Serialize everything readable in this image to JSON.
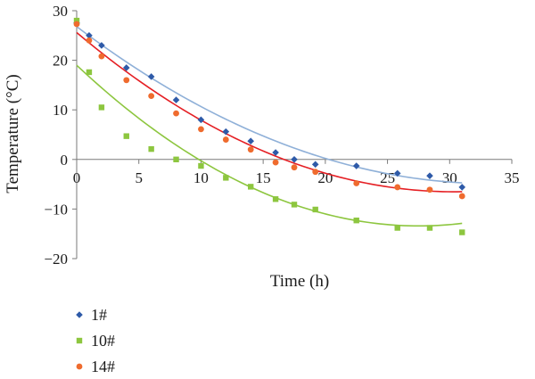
{
  "chart_data": {
    "type": "scatter",
    "xlabel": "Time (h)",
    "ylabel": "Temperature (°C)",
    "xlim": [
      0,
      35
    ],
    "ylim": [
      -20,
      30
    ],
    "x_ticks": [
      "0",
      "5",
      "10",
      "15",
      "20",
      "25",
      "30",
      "35"
    ],
    "y_ticks": [
      "30",
      "20",
      "10",
      "0",
      "−10",
      "−20"
    ],
    "y_tick_values": [
      30,
      20,
      10,
      0,
      -10,
      -20
    ],
    "x_tick_values": [
      0,
      5,
      10,
      15,
      20,
      25,
      30,
      35
    ],
    "grid": false,
    "legend_position": "bottom-left",
    "trendline": "polynomial (order 2)",
    "series": [
      {
        "name": "1#",
        "marker": "diamond",
        "color": "#2e5aa8",
        "trend_color": "#8fb0d8",
        "x": [
          0,
          1,
          2,
          4,
          6,
          8,
          10,
          12,
          14,
          16,
          17.5,
          19.2,
          22.5,
          25.8,
          28.4,
          31
        ],
        "y": [
          27.5,
          25,
          23,
          18.5,
          16.7,
          12,
          8,
          5.6,
          3.7,
          1.4,
          0,
          -1,
          -1.3,
          -2.8,
          -3.3,
          -5.6
        ],
        "trend_points": [
          [
            0,
            26.8
          ],
          [
            14,
            5.8
          ],
          [
            28.5,
            -4.2
          ],
          [
            31,
            -3.4
          ]
        ]
      },
      {
        "name": "10#",
        "marker": "square",
        "color": "#8dc63f",
        "trend_color": "#8dc63f",
        "x": [
          0,
          1,
          2,
          4,
          6,
          8,
          10,
          12,
          14,
          16,
          17.5,
          19.2,
          22.5,
          25.8,
          28.4,
          31
        ],
        "y": [
          28,
          17.6,
          10.5,
          4.7,
          2.1,
          0,
          -1.3,
          -3.7,
          -5.5,
          -8,
          -9.1,
          -10.1,
          -12.3,
          -13.8,
          -13.8,
          -14.7
        ],
        "trend_points": [
          [
            0,
            19
          ],
          [
            15,
            -6.7
          ],
          [
            28,
            -13.4
          ],
          [
            31,
            -12.7
          ]
        ]
      },
      {
        "name": "14#",
        "marker": "circle",
        "color": "#ef6b2e",
        "trend_color": "#e51f24",
        "x": [
          0,
          1,
          2,
          4,
          6,
          8,
          10,
          12,
          14,
          16,
          17.5,
          19.2,
          22.5,
          25.8,
          28.4,
          31
        ],
        "y": [
          27.3,
          24,
          20.8,
          16,
          12.8,
          9.3,
          6.1,
          4,
          2,
          -0.6,
          -1.6,
          -2.5,
          -4.8,
          -5.6,
          -6.1,
          -7.4
        ],
        "trend_points": [
          [
            0,
            25.6
          ],
          [
            15,
            1.7
          ],
          [
            28.5,
            -6.4
          ],
          [
            31,
            -5.9
          ]
        ]
      }
    ]
  }
}
